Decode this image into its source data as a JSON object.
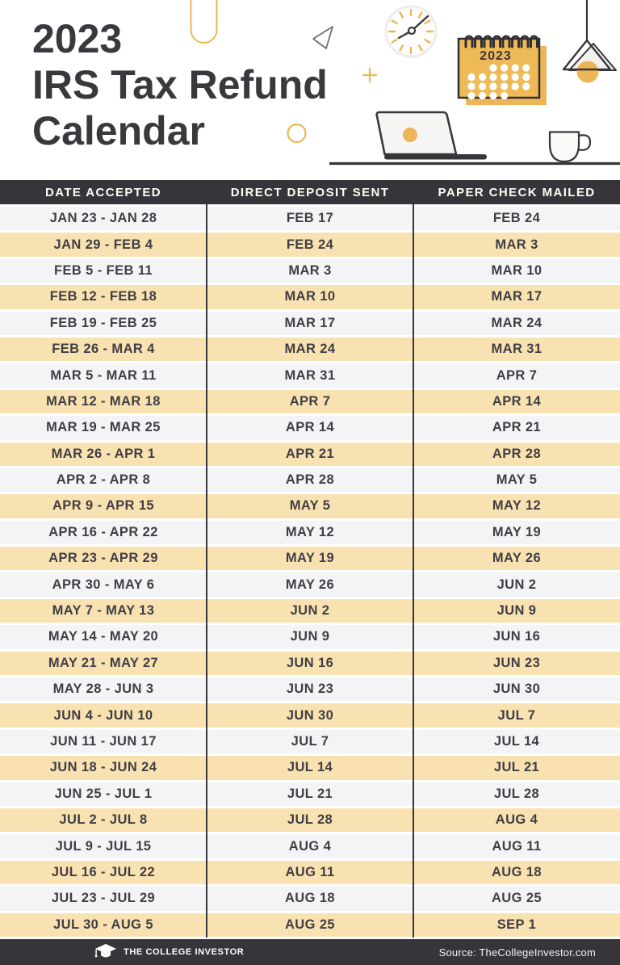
{
  "title": {
    "line1": "2023",
    "line2": "IRS Tax Refund",
    "line3": "Calendar"
  },
  "calendar_graphic": {
    "year": "2023"
  },
  "table": {
    "headers": [
      "DATE ACCEPTED",
      "DIRECT DEPOSIT SENT",
      "PAPER CHECK MAILED"
    ],
    "rows": [
      [
        "JAN 23 - JAN 28",
        "FEB 17",
        "FEB 24"
      ],
      [
        "JAN 29 - FEB 4",
        "FEB 24",
        "MAR 3"
      ],
      [
        "FEB 5 - FEB 11",
        "MAR 3",
        "MAR 10"
      ],
      [
        "FEB 12 - FEB 18",
        "MAR 10",
        "MAR 17"
      ],
      [
        "FEB 19 - FEB 25",
        "MAR 17",
        "MAR 24"
      ],
      [
        "FEB 26 - MAR 4",
        "MAR 24",
        "MAR 31"
      ],
      [
        "MAR 5 - MAR 11",
        "MAR 31",
        "APR 7"
      ],
      [
        "MAR 12 - MAR 18",
        "APR 7",
        "APR 14"
      ],
      [
        "MAR 19 - MAR 25",
        "APR 14",
        "APR 21"
      ],
      [
        "MAR 26 - APR 1",
        "APR 21",
        "APR 28"
      ],
      [
        "APR 2 - APR 8",
        "APR 28",
        "MAY 5"
      ],
      [
        "APR 9 - APR 15",
        "MAY 5",
        "MAY 12"
      ],
      [
        "APR 16 - APR 22",
        "MAY 12",
        "MAY 19"
      ],
      [
        "APR 23 - APR 29",
        "MAY 19",
        "MAY 26"
      ],
      [
        "APR 30 - MAY 6",
        "MAY 26",
        "JUN 2"
      ],
      [
        "MAY 7 - MAY 13",
        "JUN 2",
        "JUN 9"
      ],
      [
        "MAY 14 - MAY 20",
        "JUN 9",
        "JUN 16"
      ],
      [
        "MAY 21 - MAY 27",
        "JUN 16",
        "JUN 23"
      ],
      [
        "MAY 28 - JUN 3",
        "JUN 23",
        "JUN 30"
      ],
      [
        "JUN 4 - JUN 10",
        "JUN 30",
        "JUL 7"
      ],
      [
        "JUN 11 - JUN 17",
        "JUL 7",
        "JUL 14"
      ],
      [
        "JUN 18 - JUN 24",
        "JUL 14",
        "JUL 21"
      ],
      [
        "JUN 25 - JUL 1",
        "JUL 21",
        "JUL 28"
      ],
      [
        "JUL 2 - JUL 8",
        "JUL 28",
        "AUG 4"
      ],
      [
        "JUL 9 - JUL 15",
        "AUG 4",
        "AUG 11"
      ],
      [
        "JUL 16 - JUL 22",
        "AUG 11",
        "AUG 18"
      ],
      [
        "JUL 23 - JUL 29",
        "AUG 18",
        "AUG 25"
      ],
      [
        "JUL 30 - AUG 5",
        "AUG 25",
        "SEP 1"
      ]
    ]
  },
  "footer": {
    "brand": "THE COLLEGE INVESTOR",
    "source": "Source: TheCollegeInvestor.com"
  },
  "decor_icons": [
    "capsule-outline-icon",
    "triangle-outline-icon",
    "clock-icon",
    "plus-icon",
    "calendar-icon",
    "pendant-lamp-icon",
    "circle-outline-icon",
    "laptop-icon",
    "coffee-mug-icon",
    "desk-line",
    "graduation-cap-icon"
  ],
  "colors": {
    "header_bar": "#38353a",
    "row_gray": "#f4f3f5",
    "row_orange": "#f9e2b1",
    "accent_orange": "#ecb658",
    "text_dark": "#3a383d",
    "footer_bar": "#38353a"
  }
}
